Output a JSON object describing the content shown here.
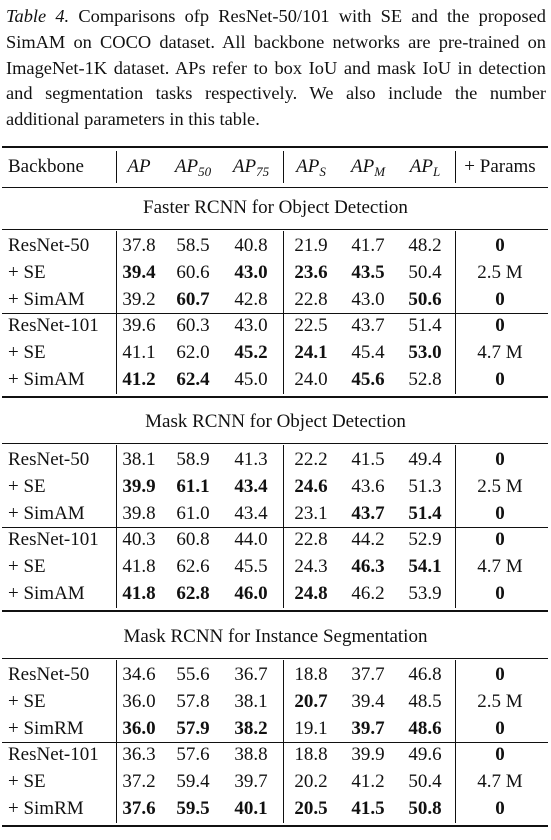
{
  "caption": {
    "label": "Table 4.",
    "text": "Comparisons ofp ResNet-50/101 with SE and the proposed SimAM on COCO dataset. All backbone networks are pre-trained on ImageNet-1K dataset. APs refer to box IoU and mask IoU in detection and segmentation tasks respectively. We also include the number additional parameters in this table."
  },
  "headers": {
    "backbone": "Backbone",
    "ap": "AP",
    "ap50": "AP",
    "ap50_sub": "50",
    "ap75": "AP",
    "ap75_sub": "75",
    "aps": "AP",
    "aps_sub": "S",
    "apm": "AP",
    "apm_sub": "M",
    "apl": "AP",
    "apl_sub": "L",
    "params": "+ Params"
  },
  "sections": [
    {
      "title": "Faster RCNN for Object Detection",
      "groups": [
        {
          "params": "2.5 M",
          "rows": [
            {
              "name": "ResNet-50",
              "vals": [
                "37.8",
                "58.5",
                "40.8",
                "21.9",
                "41.7",
                "48.2"
              ],
              "bold": [
                0,
                0,
                0,
                0,
                0,
                0
              ],
              "param": "0",
              "param_bold": 1
            },
            {
              "name": "+ SE",
              "vals": [
                "39.4",
                "60.6",
                "43.0",
                "23.6",
                "43.5",
                "50.4"
              ],
              "bold": [
                1,
                0,
                1,
                1,
                1,
                0
              ],
              "param": "2.5 M",
              "param_bold": 0
            },
            {
              "name": "+ SimAM",
              "vals": [
                "39.2",
                "60.7",
                "42.8",
                "22.8",
                "43.0",
                "50.6"
              ],
              "bold": [
                0,
                1,
                0,
                0,
                0,
                1
              ],
              "param": "0",
              "param_bold": 1
            }
          ]
        },
        {
          "rows": [
            {
              "name": "ResNet-101",
              "vals": [
                "39.6",
                "60.3",
                "43.0",
                "22.5",
                "43.7",
                "51.4"
              ],
              "bold": [
                0,
                0,
                0,
                0,
                0,
                0
              ],
              "param": "0",
              "param_bold": 1
            },
            {
              "name": "+ SE",
              "vals": [
                "41.1",
                "62.0",
                "45.2",
                "24.1",
                "45.4",
                "53.0"
              ],
              "bold": [
                0,
                0,
                1,
                1,
                0,
                1
              ],
              "param": "4.7 M",
              "param_bold": 0
            },
            {
              "name": "+ SimAM",
              "vals": [
                "41.2",
                "62.4",
                "45.0",
                "24.0",
                "45.6",
                "52.8"
              ],
              "bold": [
                1,
                1,
                0,
                0,
                1,
                0
              ],
              "param": "0",
              "param_bold": 1
            }
          ]
        }
      ]
    },
    {
      "title": "Mask RCNN for Object Detection",
      "groups": [
        {
          "rows": [
            {
              "name": "ResNet-50",
              "vals": [
                "38.1",
                "58.9",
                "41.3",
                "22.2",
                "41.5",
                "49.4"
              ],
              "bold": [
                0,
                0,
                0,
                0,
                0,
                0
              ],
              "param": "0",
              "param_bold": 1
            },
            {
              "name": "+ SE",
              "vals": [
                "39.9",
                "61.1",
                "43.4",
                "24.6",
                "43.6",
                "51.3"
              ],
              "bold": [
                1,
                1,
                1,
                1,
                0,
                0
              ],
              "param": "2.5 M",
              "param_bold": 0
            },
            {
              "name": "+ SimAM",
              "vals": [
                "39.8",
                "61.0",
                "43.4",
                "23.1",
                "43.7",
                "51.4"
              ],
              "bold": [
                0,
                0,
                0,
                0,
                1,
                1
              ],
              "param": "0",
              "param_bold": 1
            }
          ]
        },
        {
          "rows": [
            {
              "name": "ResNet-101",
              "vals": [
                "40.3",
                "60.8",
                "44.0",
                "22.8",
                "44.2",
                "52.9"
              ],
              "bold": [
                0,
                0,
                0,
                0,
                0,
                0
              ],
              "param": "0",
              "param_bold": 1
            },
            {
              "name": "+ SE",
              "vals": [
                "41.8",
                "62.6",
                "45.5",
                "24.3",
                "46.3",
                "54.1"
              ],
              "bold": [
                0,
                0,
                0,
                0,
                1,
                1
              ],
              "param": "4.7 M",
              "param_bold": 0
            },
            {
              "name": "+ SimAM",
              "vals": [
                "41.8",
                "62.8",
                "46.0",
                "24.8",
                "46.2",
                "53.9"
              ],
              "bold": [
                1,
                1,
                1,
                1,
                0,
                0
              ],
              "param": "0",
              "param_bold": 1
            }
          ]
        }
      ]
    },
    {
      "title": "Mask RCNN for Instance Segmentation",
      "groups": [
        {
          "rows": [
            {
              "name": "ResNet-50",
              "vals": [
                "34.6",
                "55.6",
                "36.7",
                "18.8",
                "37.7",
                "46.8"
              ],
              "bold": [
                0,
                0,
                0,
                0,
                0,
                0
              ],
              "param": "0",
              "param_bold": 1
            },
            {
              "name": "+ SE",
              "vals": [
                "36.0",
                "57.8",
                "38.1",
                "20.7",
                "39.4",
                "48.5"
              ],
              "bold": [
                0,
                0,
                0,
                1,
                0,
                0
              ],
              "param": "2.5 M",
              "param_bold": 0
            },
            {
              "name": "+ SimRM",
              "vals": [
                "36.0",
                "57.9",
                "38.2",
                "19.1",
                "39.7",
                "48.6"
              ],
              "bold": [
                1,
                1,
                1,
                0,
                1,
                1
              ],
              "param": "0",
              "param_bold": 1
            }
          ]
        },
        {
          "rows": [
            {
              "name": "ResNet-101",
              "vals": [
                "36.3",
                "57.6",
                "38.8",
                "18.8",
                "39.9",
                "49.6"
              ],
              "bold": [
                0,
                0,
                0,
                0,
                0,
                0
              ],
              "param": "0",
              "param_bold": 1
            },
            {
              "name": "+ SE",
              "vals": [
                "37.2",
                "59.4",
                "39.7",
                "20.2",
                "41.2",
                "50.4"
              ],
              "bold": [
                0,
                0,
                0,
                0,
                0,
                0
              ],
              "param": "4.7 M",
              "param_bold": 0
            },
            {
              "name": "+ SimRM",
              "vals": [
                "37.6",
                "59.5",
                "40.1",
                "20.5",
                "41.5",
                "50.8"
              ],
              "bold": [
                1,
                1,
                1,
                1,
                1,
                1
              ],
              "param": "0",
              "param_bold": 1
            }
          ]
        }
      ]
    }
  ]
}
